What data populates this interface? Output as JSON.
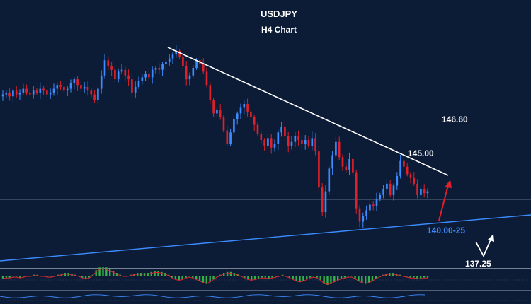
{
  "chart_data": {
    "type": "candlestick",
    "title": "USDJPY",
    "subtitle": "H4 Chart",
    "levels": [
      {
        "label": "146.60",
        "color": "#ffffff"
      },
      {
        "label": "145.00",
        "color": "#ffffff"
      },
      {
        "label": "140.00-25",
        "color": "#3d8cff"
      },
      {
        "label": "137.25",
        "color": "#ffffff"
      }
    ],
    "series": [
      {
        "values": [
          145.6,
          145.7,
          145.5,
          145.8,
          145.6,
          145.7,
          145.9,
          145.7,
          145.6,
          145.8,
          145.7,
          145.9,
          145.8,
          145.6,
          145.7,
          145.9,
          146.1,
          146.0,
          145.8,
          145.9,
          146.2,
          146.4,
          146.1,
          145.9,
          146.0,
          145.8,
          145.6,
          145.3,
          145.9,
          146.6,
          147.4,
          147.1,
          146.9,
          146.4,
          146.8,
          146.9,
          146.6,
          146.4,
          145.7,
          146.0,
          146.3,
          146.5,
          146.7,
          146.5,
          146.9,
          147.0,
          146.9,
          147.2,
          147.3,
          147.5,
          147.7,
          147.9,
          147.6,
          147.1,
          146.4,
          146.6,
          147.0,
          147.4,
          147.2,
          146.8,
          146.1,
          145.3,
          144.6,
          144.8,
          144.4,
          143.7,
          143.0,
          143.6,
          144.3,
          144.6,
          144.9,
          145.1,
          144.7,
          144.4,
          144.0,
          143.5,
          143.2,
          142.9,
          143.3,
          142.8,
          143.0,
          143.6,
          143.9,
          143.4,
          142.9,
          143.1,
          143.4,
          143.2,
          143.0,
          143.2,
          142.9,
          143.3,
          142.6,
          140.7,
          139.4,
          140.5,
          141.7,
          142.4,
          143.1,
          142.3,
          141.8,
          141.6,
          142.2,
          141.5,
          139.6,
          138.9,
          139.2,
          139.5,
          139.8,
          139.7,
          140.1,
          140.3,
          140.6,
          140.9,
          140.3,
          140.8,
          141.3,
          142.1,
          141.8,
          141.4,
          141.2,
          140.9,
          140.3,
          140.6,
          140.4,
          140.5
        ]
      }
    ],
    "oscillator": [
      -0.3,
      -0.2,
      -0.2,
      -0.1,
      -0.1,
      -0.2,
      -0.1,
      0.0,
      0.0,
      0.1,
      0.1,
      0.0,
      0.0,
      -0.1,
      -0.1,
      0.0,
      0.1,
      0.2,
      0.3,
      0.3,
      0.2,
      0.1,
      0.0,
      -0.2,
      -0.3,
      -0.2,
      0.1,
      0.6,
      0.9,
      1.0,
      0.9,
      0.7,
      0.5,
      0.3,
      0.1,
      0.0,
      0.0,
      0.1,
      0.2,
      0.3,
      0.3,
      0.3,
      0.3,
      0.4,
      0.5,
      0.5,
      0.4,
      0.3,
      0.1,
      -0.2,
      -0.4,
      -0.5,
      -0.4,
      -0.2,
      -0.1,
      -0.2,
      -0.4,
      -0.6,
      -0.8,
      -0.9,
      -0.7,
      -0.4,
      -0.1,
      0.1,
      0.3,
      0.4,
      0.4,
      0.3,
      0.2,
      0.0,
      -0.2,
      -0.4,
      -0.5,
      -0.4,
      -0.3,
      -0.2,
      -0.2,
      -0.3,
      -0.2,
      -0.1,
      0.0,
      0.1,
      0.0,
      -0.2,
      -0.4,
      -0.6,
      -0.7,
      -0.6,
      -0.4,
      -0.2,
      -0.1,
      -0.2,
      -0.5,
      -0.9,
      -1.0,
      -0.9,
      -0.7,
      -0.5,
      -0.3,
      -0.2,
      -0.1,
      -0.1,
      -0.3,
      -0.6,
      -0.8,
      -0.9,
      -0.8,
      -0.6,
      -0.3,
      -0.1,
      0.1,
      0.2,
      0.3,
      0.3,
      0.2,
      0.1,
      0.0,
      -0.1,
      -0.2,
      -0.2,
      -0.3,
      -0.3,
      -0.2,
      -0.2
    ],
    "up_color": "#3d8cff",
    "down_color": "#e0202a",
    "trendline_color": "#ffffff",
    "support_color": "#3d8cff",
    "arrow_color": "#e0202a",
    "histogram_color": "#35b04a",
    "background": "#0c1b36"
  }
}
